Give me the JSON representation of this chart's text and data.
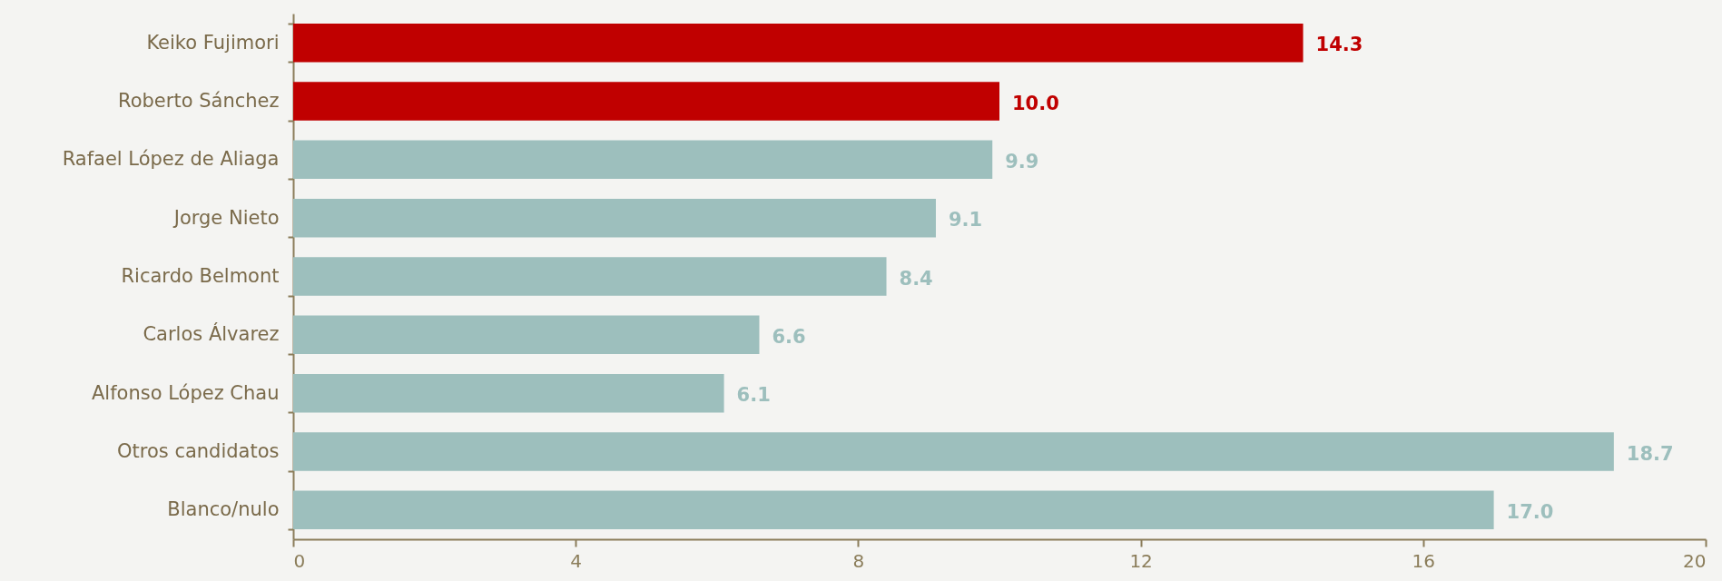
{
  "chart_data": {
    "type": "bar",
    "orientation": "horizontal",
    "categories": [
      "Keiko Fujimori",
      "Roberto Sánchez",
      "Rafael López de Aliaga",
      "Jorge Nieto",
      "Ricardo Belmont",
      "Carlos Álvarez",
      "Alfonso López Chau",
      "Otros candidatos",
      "Blanco/nulo"
    ],
    "values": [
      14.3,
      10.0,
      9.9,
      9.1,
      8.4,
      6.6,
      6.1,
      18.7,
      17.0
    ],
    "colors": [
      "#c00000",
      "#c00000",
      "#9dbfbd",
      "#9dbfbd",
      "#9dbfbd",
      "#9dbfbd",
      "#9dbfbd",
      "#9dbfbd",
      "#9dbfbd"
    ],
    "value_labels": [
      "14.3",
      "10.0",
      "9.9",
      "9.1",
      "8.4",
      "6.6",
      "6.1",
      "18.7",
      "17.0"
    ],
    "xlim": [
      0,
      20
    ],
    "xticks": [
      0,
      4,
      8,
      12,
      16,
      20
    ],
    "grid": false
  }
}
